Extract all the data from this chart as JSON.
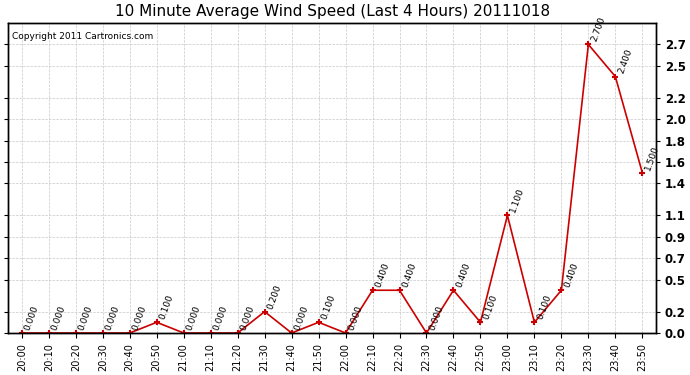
{
  "title": "10 Minute Average Wind Speed (Last 4 Hours) 20111018",
  "copyright": "Copyright 2011 Cartronics.com",
  "x_labels": [
    "20:00",
    "20:10",
    "20:20",
    "20:30",
    "20:40",
    "20:50",
    "21:00",
    "21:10",
    "21:20",
    "21:30",
    "21:40",
    "21:50",
    "22:00",
    "22:10",
    "22:20",
    "22:30",
    "22:40",
    "22:50",
    "23:00",
    "23:10",
    "23:20",
    "23:30",
    "23:40",
    "23:50"
  ],
  "y_values": [
    0.0,
    0.0,
    0.0,
    0.0,
    0.0,
    0.1,
    0.0,
    0.0,
    0.0,
    0.2,
    0.0,
    0.1,
    0.0,
    0.4,
    0.4,
    0.0,
    0.4,
    0.1,
    1.1,
    0.1,
    0.4,
    2.7,
    2.4,
    1.5
  ],
  "line_color": "#cc0000",
  "marker_color": "#cc0000",
  "bg_color": "#ffffff",
  "grid_color": "#c8c8c8",
  "title_fontsize": 11,
  "annotation_fontsize": 6.5,
  "ylim": [
    0.0,
    2.9
  ],
  "yticks_right": [
    0.0,
    0.2,
    0.5,
    0.7,
    0.9,
    1.1,
    1.4,
    1.6,
    1.8,
    2.0,
    2.2,
    2.5,
    2.7
  ],
  "figsize": [
    6.9,
    3.75
  ],
  "dpi": 100
}
